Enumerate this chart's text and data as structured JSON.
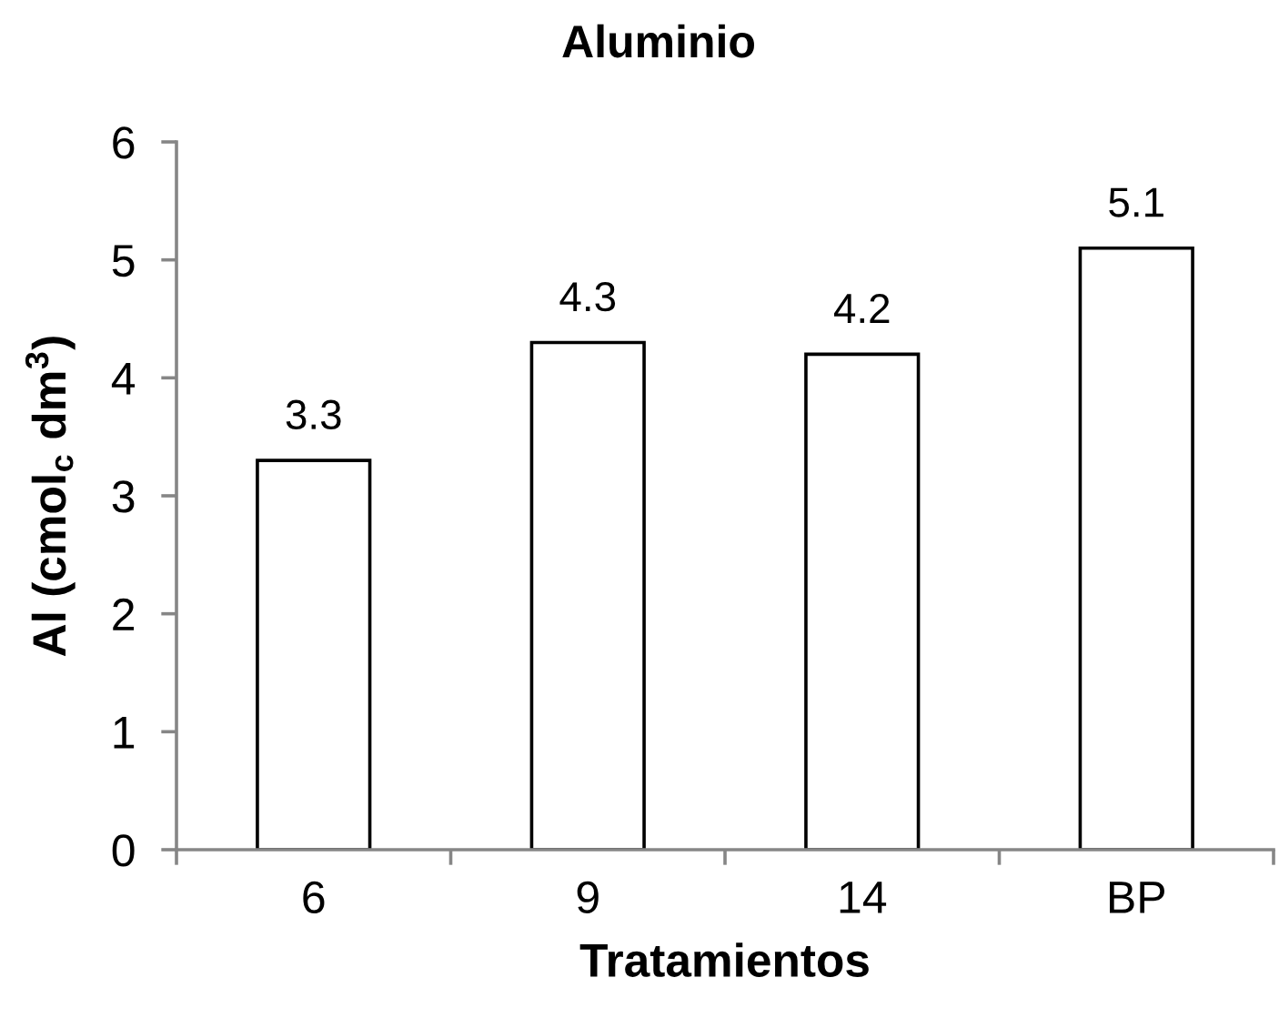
{
  "chart_data": {
    "type": "bar",
    "title": "Aluminio",
    "xlabel": "Tratamientos",
    "ylabel": "Al (cmol$_{c}$ dm$^{3}$)",
    "categories": [
      "6",
      "9",
      "14",
      "BP"
    ],
    "values": [
      3.3,
      4.3,
      4.2,
      5.1
    ],
    "color": "#ffffff",
    "ylim": [
      0,
      6
    ],
    "yticks": [
      0,
      1,
      2,
      3,
      4,
      5,
      6
    ],
    "data_labels": true
  }
}
